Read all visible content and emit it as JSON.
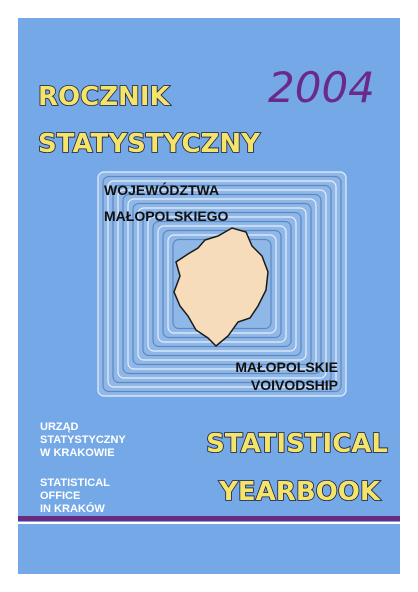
{
  "cover": {
    "title_pl": [
      "ROCZNIK",
      "STATYSTYCZNY"
    ],
    "year": "2004",
    "region_pl": [
      "WOJEWÓDZTWA",
      "MAŁOPOLSKIEGO"
    ],
    "region_en": [
      "MAŁOPOLSKIE",
      "VOIVODSHIP"
    ],
    "office_pl": [
      "URZĄD",
      "STATYSTYCZNY",
      "W KRAKOWIE"
    ],
    "office_en": [
      "STATISTICAL",
      "OFFICE",
      "IN KRAKÓW"
    ],
    "title_en": [
      "STATISTICAL",
      "YEARBOOK"
    ]
  }
}
